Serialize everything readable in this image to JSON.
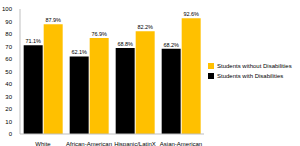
{
  "chart_data": {
    "type": "bar",
    "categories": [
      "White",
      "African-American",
      "Hispanic/LatinX",
      "Asian-American"
    ],
    "series": [
      {
        "name": "Students with Disabilities",
        "color": "#000000",
        "values": [
          71.1,
          62.1,
          68.8,
          68.2
        ],
        "value_labels": [
          "71.1%",
          "62.1%",
          "68.8%",
          "68.2%"
        ]
      },
      {
        "name": "Students without Disabilities",
        "color": "#FFC000",
        "values": [
          87.9,
          76.9,
          82.2,
          92.6
        ],
        "value_labels": [
          "87.9%",
          "76.9%",
          "82.2%",
          "92.6%"
        ]
      }
    ],
    "ylim": [
      0,
      100
    ],
    "yticks": [
      0,
      10,
      20,
      30,
      40,
      50,
      60,
      70,
      80,
      90,
      100
    ],
    "grid": false,
    "legend": "right",
    "data_labels": true
  }
}
